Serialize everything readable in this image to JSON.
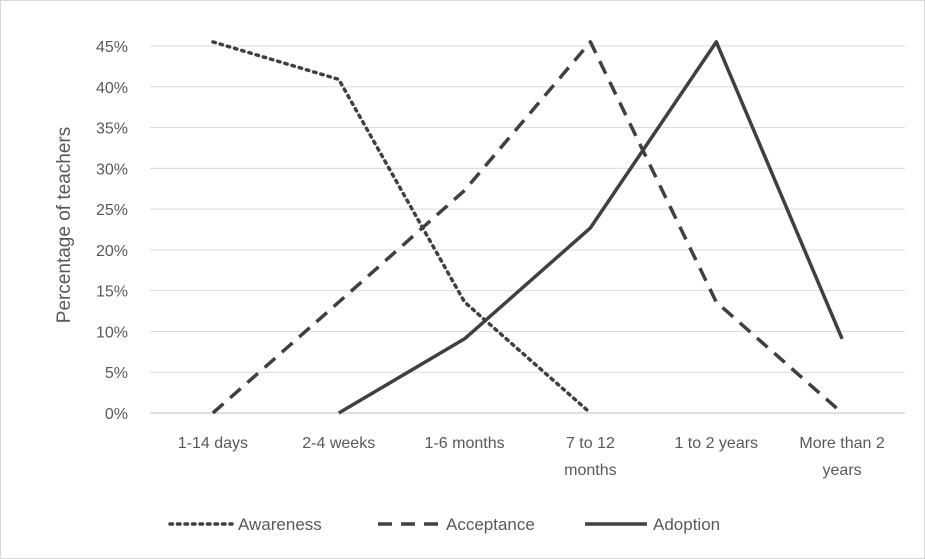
{
  "chart_data": {
    "type": "line",
    "title": "",
    "xlabel": "",
    "ylabel": "Percentage of teachers",
    "categories": [
      [
        "1-14 days"
      ],
      [
        "2-4 weeks"
      ],
      [
        "1-6 months"
      ],
      [
        "7 to 12",
        "months"
      ],
      [
        "1 to 2 years"
      ],
      [
        "More than 2",
        "years"
      ]
    ],
    "y_ticks": [
      "0%",
      "5%",
      "10%",
      "15%",
      "20%",
      "25%",
      "30%",
      "35%",
      "40%",
      "45%"
    ],
    "ylim": [
      0,
      45
    ],
    "grid": true,
    "legend_position": "bottom",
    "series": [
      {
        "name": "Awareness",
        "style": "dotted",
        "color": "#404040",
        "values": [
          45.5,
          40.9,
          13.6,
          0,
          null,
          null
        ]
      },
      {
        "name": "Acceptance",
        "style": "dashed",
        "color": "#404040",
        "values": [
          0,
          13.6,
          27.3,
          45.5,
          13.6,
          0
        ]
      },
      {
        "name": "Adoption",
        "style": "solid",
        "color": "#404040",
        "values": [
          null,
          0,
          9.1,
          22.7,
          45.5,
          9.1
        ]
      }
    ]
  }
}
